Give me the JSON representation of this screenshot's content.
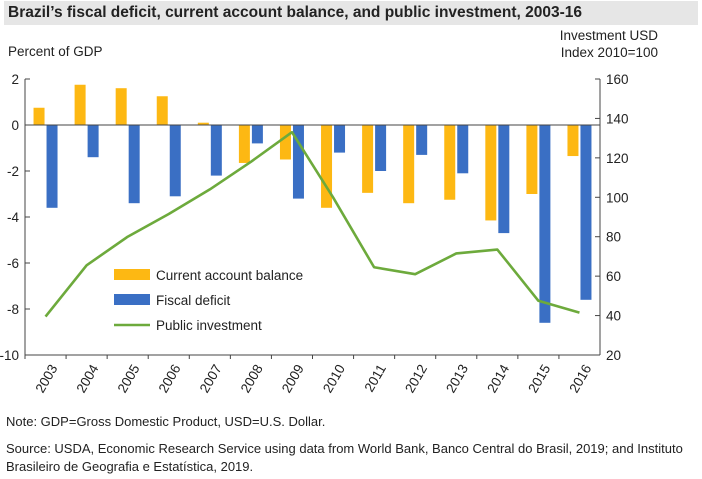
{
  "chart_data": {
    "type": "bar",
    "title": "Brazil’s fiscal deficit, current account balance, and public investment, 2003-16",
    "ylabel": "Percent of GDP",
    "ylabel_right": [
      "Investment USD",
      "Index 2010=100"
    ],
    "ylim": [
      -10,
      2
    ],
    "ylim_right": [
      20,
      160
    ],
    "yticks": [
      2,
      0,
      -2,
      -4,
      -6,
      -8,
      -10
    ],
    "yticks_right": [
      160,
      140,
      120,
      100,
      80,
      60,
      40,
      20
    ],
    "categories": [
      "2003",
      "2004",
      "2005",
      "2006",
      "2007",
      "2008",
      "2009",
      "2010",
      "2011",
      "2012",
      "2013",
      "2014",
      "2015",
      "2016"
    ],
    "series": [
      {
        "name": "Current account balance",
        "type": "bar",
        "axis": "left",
        "color": "#FDB813",
        "values": [
          0.75,
          1.75,
          1.6,
          1.25,
          0.1,
          -1.65,
          -1.5,
          -3.6,
          -2.95,
          -3.4,
          -3.25,
          -4.15,
          -3.0,
          -1.35
        ]
      },
      {
        "name": "Fiscal deficit",
        "type": "bar",
        "axis": "left",
        "color": "#3A6FC4",
        "values": [
          -3.6,
          -1.4,
          -3.4,
          -3.1,
          -2.2,
          -0.8,
          -3.2,
          -1.2,
          -2.0,
          -1.3,
          -2.1,
          -4.7,
          -8.6,
          -7.6
        ]
      },
      {
        "name": "Public investment",
        "type": "line",
        "axis": "right",
        "color": "#6DAA3C",
        "values": [
          39.5,
          65.5,
          80,
          91.5,
          104,
          118,
          133,
          100,
          64.5,
          61,
          71.5,
          73.5,
          47.5,
          41.5
        ]
      }
    ]
  },
  "note": "Note: GDP=Gross Domestic Product, USD=U.S. Dollar.",
  "source": "Source: USDA, Economic Research Service using data from World Bank, Banco Central do Brasil, 2019; and Instituto Brasileiro de Geografia e Estatística, 2019."
}
